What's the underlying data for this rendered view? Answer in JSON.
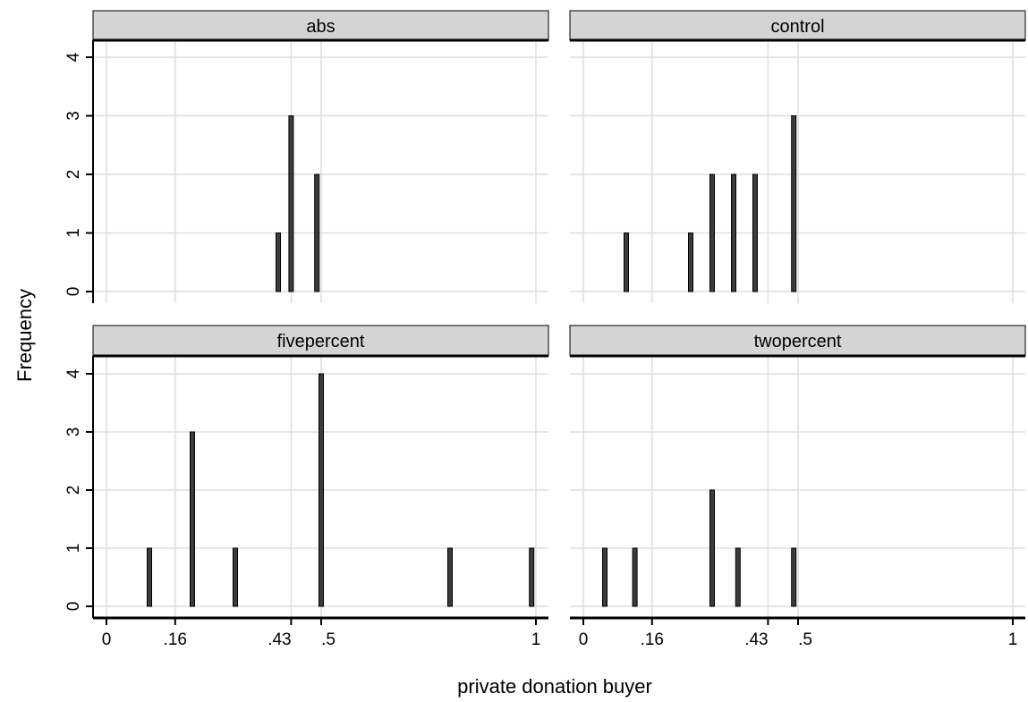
{
  "chart_data": {
    "type": "bar",
    "xlabel": "private donation buyer",
    "ylabel": "Frequency",
    "xlim": [
      0,
      1
    ],
    "ylim": [
      0,
      4
    ],
    "x_ticks": [
      {
        "value": 0,
        "label": "0"
      },
      {
        "value": 0.16,
        "label": ".16"
      },
      {
        "value": 0.43,
        "label": ".43"
      },
      {
        "value": 0.5,
        "label": ".5"
      },
      {
        "value": 1,
        "label": "1"
      }
    ],
    "y_ticks": [
      {
        "value": 0,
        "label": "0"
      },
      {
        "value": 1,
        "label": "1"
      },
      {
        "value": 2,
        "label": "2"
      },
      {
        "value": 3,
        "label": "3"
      },
      {
        "value": 4,
        "label": "4"
      }
    ],
    "grid": true,
    "panels": [
      {
        "title": "abs",
        "bars": [
          {
            "x": 0.4,
            "y": 1
          },
          {
            "x": 0.43,
            "y": 3
          },
          {
            "x": 0.49,
            "y": 2
          }
        ]
      },
      {
        "title": "control",
        "bars": [
          {
            "x": 0.1,
            "y": 1
          },
          {
            "x": 0.25,
            "y": 1
          },
          {
            "x": 0.3,
            "y": 2
          },
          {
            "x": 0.35,
            "y": 2
          },
          {
            "x": 0.4,
            "y": 2
          },
          {
            "x": 0.49,
            "y": 3
          }
        ]
      },
      {
        "title": "fivepercent",
        "bars": [
          {
            "x": 0.1,
            "y": 1
          },
          {
            "x": 0.2,
            "y": 3
          },
          {
            "x": 0.3,
            "y": 1
          },
          {
            "x": 0.5,
            "y": 4
          },
          {
            "x": 0.8,
            "y": 1
          },
          {
            "x": 0.99,
            "y": 1
          }
        ]
      },
      {
        "title": "twopercent",
        "bars": [
          {
            "x": 0.05,
            "y": 1
          },
          {
            "x": 0.12,
            "y": 1
          },
          {
            "x": 0.3,
            "y": 2
          },
          {
            "x": 0.36,
            "y": 1
          },
          {
            "x": 0.49,
            "y": 1
          }
        ]
      }
    ],
    "colors": {
      "strip_fill": "#d4d4d4",
      "grid": "#dedede",
      "bar_fill": "#3c3c3c",
      "bar_stroke": "#000000"
    }
  }
}
